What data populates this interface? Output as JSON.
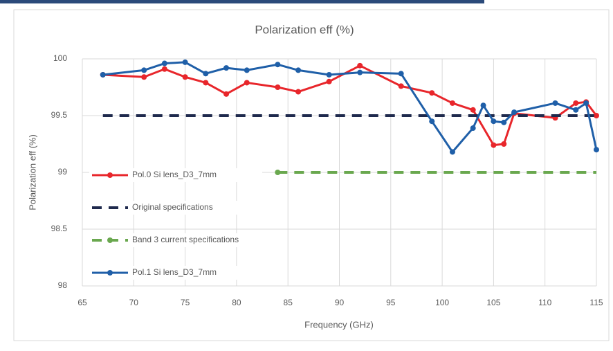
{
  "chart_data": {
    "type": "line",
    "title": "Polarization eff (%)",
    "x_label": "Frequency (GHz)",
    "y_label": "Polarization eff (%)",
    "xlim": [
      65,
      115
    ],
    "xticks": [
      65,
      70,
      75,
      80,
      85,
      90,
      95,
      100,
      105,
      110,
      115
    ],
    "ylim": [
      98,
      100
    ],
    "yticks": [
      98,
      98.5,
      99,
      99.5,
      100
    ],
    "grid": true,
    "legend": "center-left",
    "series": [
      {
        "name": "Pol.0 Si lens_D3_7mm",
        "color": "#e8262b",
        "dash": false,
        "markers": true,
        "x": [
          67,
          71,
          73,
          75,
          77,
          79,
          81,
          84,
          86,
          89,
          92,
          96,
          99,
          101,
          103,
          105,
          106,
          107,
          111,
          113,
          114,
          115
        ],
        "values": [
          99.86,
          99.84,
          99.91,
          99.84,
          99.79,
          99.69,
          99.79,
          99.75,
          99.71,
          99.8,
          99.94,
          99.76,
          99.7,
          99.61,
          99.55,
          99.24,
          99.25,
          99.52,
          99.48,
          99.61,
          99.62,
          99.5
        ]
      },
      {
        "name": "Original specifications",
        "color": "#1f2a4d",
        "dash": true,
        "markers": false,
        "x": [
          67,
          115
        ],
        "values": [
          99.5,
          99.5
        ]
      },
      {
        "name": "Band 3 current specifications",
        "color": "#6aa84f",
        "dash": true,
        "markers": true,
        "x": [
          84,
          115
        ],
        "values": [
          99,
          99
        ]
      },
      {
        "name": "Pol.1 Si lens_D3_7mm",
        "color": "#1f5fa8",
        "dash": false,
        "markers": true,
        "x": [
          67,
          71,
          73,
          75,
          77,
          79,
          81,
          84,
          86,
          89,
          92,
          96,
          99,
          101,
          103,
          104,
          105,
          106,
          107,
          111,
          113,
          114,
          115
        ],
        "values": [
          99.86,
          99.9,
          99.96,
          99.97,
          99.87,
          99.92,
          99.9,
          99.95,
          99.9,
          99.86,
          99.88,
          99.87,
          99.45,
          99.18,
          99.39,
          99.59,
          99.45,
          99.44,
          99.53,
          99.61,
          99.55,
          99.61,
          99.2
        ]
      }
    ]
  }
}
